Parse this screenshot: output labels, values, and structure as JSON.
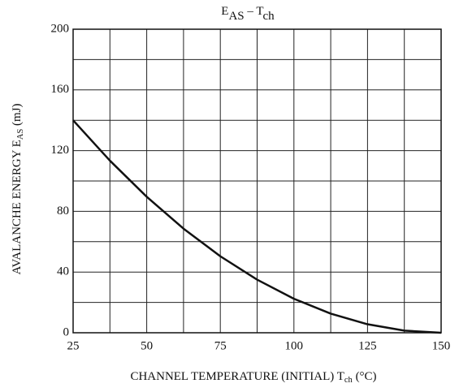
{
  "chart_data": {
    "type": "line",
    "title": [
      {
        "text": "E"
      },
      {
        "text": "AS",
        "sub": true
      },
      {
        "text": " – T"
      },
      {
        "text": "ch",
        "sub": true
      }
    ],
    "xlabel": [
      {
        "text": "CHANNEL TEMPERATURE (INITIAL)  T"
      },
      {
        "text": "ch",
        "sub": true
      },
      {
        "text": "  (°C)"
      }
    ],
    "ylabel": [
      {
        "text": "AVALANCHE ENERGY   E"
      },
      {
        "text": "AS",
        "sub": true
      },
      {
        "text": "   (mJ)"
      }
    ],
    "x": [
      25,
      37.5,
      50,
      62.5,
      75,
      87.5,
      100,
      112.5,
      125,
      137.5,
      150
    ],
    "series": [
      {
        "name": "EAS",
        "color": "#111111",
        "values": [
          140,
          113.4,
          89.6,
          68.6,
          50.4,
          35,
          22.4,
          12.6,
          5.6,
          1.4,
          0
        ]
      }
    ],
    "xlim": [
      25,
      150
    ],
    "ylim": [
      0,
      200
    ],
    "xticks": [
      25,
      50,
      75,
      100,
      125,
      150
    ],
    "yticks": [
      0,
      40,
      80,
      120,
      160,
      200
    ],
    "xgrid": [
      37.5,
      62.5,
      87.5,
      112.5,
      137.5
    ],
    "ygrid": [
      20,
      60,
      100,
      140,
      180
    ],
    "grid": true
  }
}
